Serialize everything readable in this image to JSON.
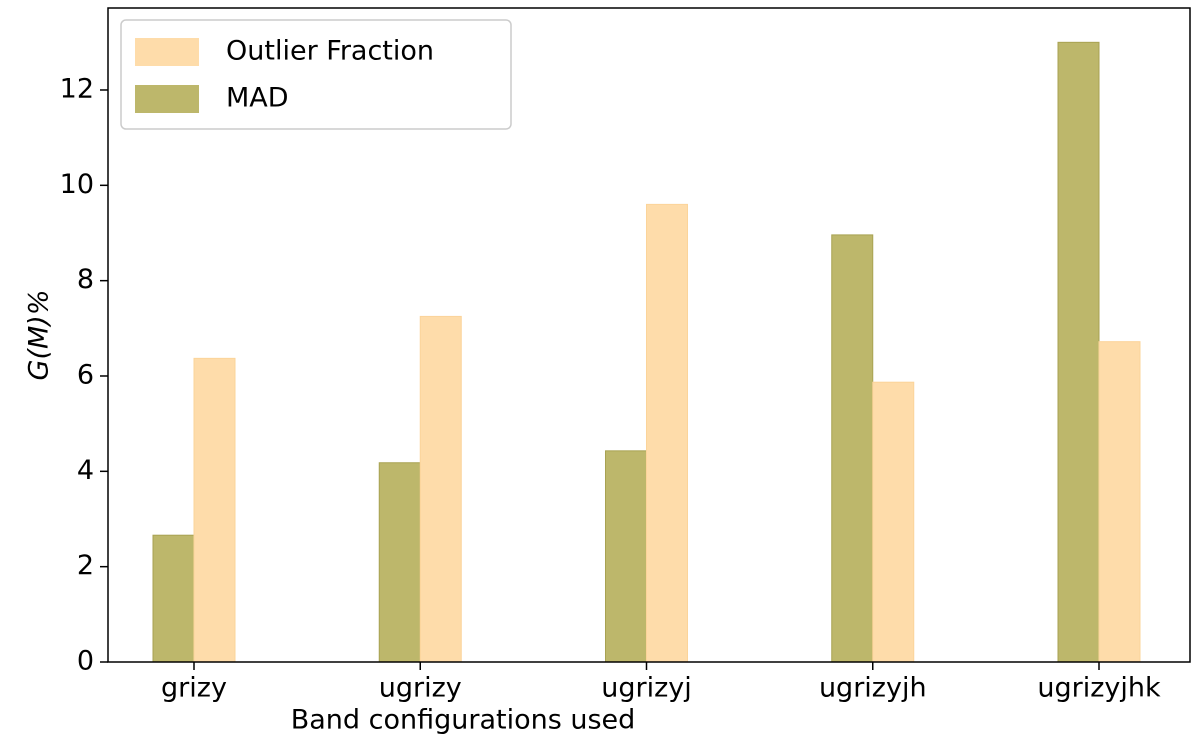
{
  "chart_data": {
    "type": "bar",
    "x_label": "Band configurations used",
    "y_label": "G(M)%",
    "categories": [
      "grizy",
      "ugrizy",
      "ugrizyj",
      "ugrizyjh",
      "ugrizyjhk"
    ],
    "series": [
      {
        "name": "MAD",
        "color": "#bdb76b",
        "values": [
          2.66,
          4.18,
          4.43,
          8.96,
          13.0
        ]
      },
      {
        "name": "Outlier Fraction",
        "color": "#fedcaa",
        "values": [
          6.37,
          7.25,
          9.6,
          5.87,
          6.72
        ]
      }
    ],
    "ylim": [
      0,
      13.72
    ],
    "yticks": [
      0,
      2,
      4,
      6,
      8,
      10,
      12
    ],
    "legend": "upper left"
  }
}
